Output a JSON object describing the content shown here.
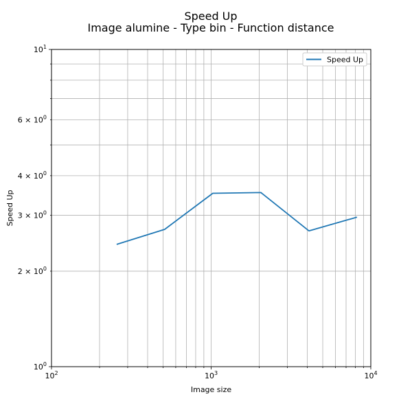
{
  "chart_data": {
    "type": "line",
    "title": "Speed Up",
    "subtitle": "Image alumine - Type bin - Function distance",
    "xlabel": "Image size",
    "ylabel": "Speed Up",
    "xscale": "log",
    "yscale": "log",
    "xlim": [
      100,
      10000
    ],
    "ylim": [
      1,
      10
    ],
    "grid": true,
    "legend_position": "top-right",
    "series": [
      {
        "name": "Speed Up",
        "color": "#1f77b4",
        "x": [
          256,
          512,
          1024,
          2048,
          4096,
          8192
        ],
        "y": [
          2.43,
          2.71,
          3.52,
          3.54,
          2.68,
          2.96
        ]
      }
    ],
    "x_major_ticks": [
      {
        "value": 100,
        "base": "10",
        "exp": "2"
      },
      {
        "value": 1000,
        "base": "10",
        "exp": "3"
      },
      {
        "value": 10000,
        "base": "10",
        "exp": "4"
      }
    ],
    "y_ticks": [
      {
        "value": 1,
        "mant": "",
        "base": "10",
        "exp": "0"
      },
      {
        "value": 2,
        "mant": "2 × ",
        "base": "10",
        "exp": "0"
      },
      {
        "value": 3,
        "mant": "3 × ",
        "base": "10",
        "exp": "0"
      },
      {
        "value": 4,
        "mant": "4 × ",
        "base": "10",
        "exp": "0"
      },
      {
        "value": 6,
        "mant": "6 × ",
        "base": "10",
        "exp": "0"
      },
      {
        "value": 10,
        "mant": "",
        "base": "10",
        "exp": "1"
      }
    ]
  }
}
